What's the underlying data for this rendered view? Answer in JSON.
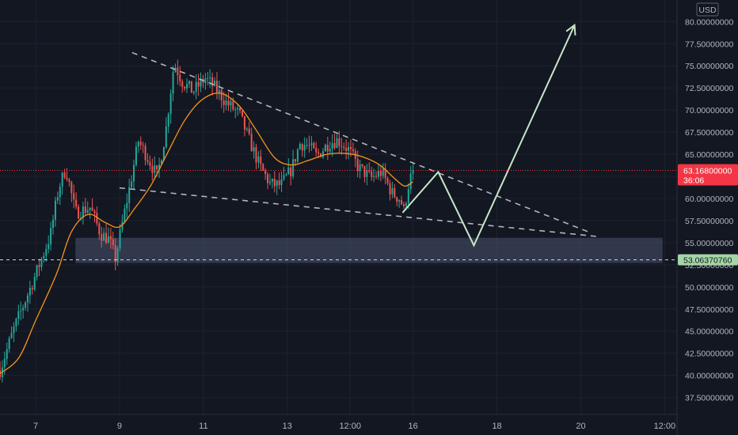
{
  "chart_data": {
    "type": "candlestick",
    "currency": "USD",
    "y_ticks": [
      "80.00000000",
      "77.50000000",
      "75.00000000",
      "72.50000000",
      "70.00000000",
      "67.50000000",
      "65.00000000",
      "62.50000000",
      "60.00000000",
      "57.50000000",
      "55.00000000",
      "52.50000000",
      "50.00000000",
      "47.50000000",
      "45.00000000",
      "42.50000000",
      "40.00000000",
      "37.50000000"
    ],
    "y_tick_values": [
      80,
      77.5,
      75,
      72.5,
      70,
      67.5,
      65,
      62.5,
      60,
      57.5,
      55,
      52.5,
      50,
      47.5,
      45,
      42.5,
      40,
      37.5
    ],
    "ylim": [
      36.3,
      81.1
    ],
    "x_ticks": [
      "7",
      "9",
      "11",
      "13",
      "12:00",
      "16",
      "18",
      "20",
      "12:00"
    ],
    "x_tick_values": [
      7,
      9,
      11,
      13,
      14.5,
      16,
      18,
      20,
      22
    ],
    "xlim": [
      6.15,
      22.2
    ],
    "last_price": {
      "label": "63.16800000",
      "value": 63.168,
      "countdown": "36:06",
      "color": "#f23645"
    },
    "level_line": {
      "label": "53.06370760",
      "value": 53.0637,
      "color": "#a5d6a7"
    },
    "support_zone": {
      "x_from": 7.95,
      "x_to": 21.95,
      "y_low": 52.7,
      "y_high": 55.55,
      "color": "#4a5470"
    },
    "wedge_upper": {
      "from": [
        9.3,
        76.5
      ],
      "to": [
        20.25,
        56.1
      ]
    },
    "wedge_lower": {
      "from": [
        9.0,
        61.2
      ],
      "to": [
        20.4,
        55.7
      ]
    },
    "projection": [
      [
        15.75,
        58.4
      ],
      [
        16.6,
        63.0
      ],
      [
        17.45,
        54.7
      ],
      [
        19.85,
        79.6
      ]
    ],
    "ma_line_color": "#f7931a",
    "candles": {
      "count": 180,
      "x_start": 6.15,
      "x_end": 16.0,
      "anchors": [
        [
          6.15,
          40.6
        ],
        [
          6.5,
          45.5
        ],
        [
          6.95,
          50.8
        ],
        [
          7.35,
          55.8
        ],
        [
          7.55,
          61.2
        ],
        [
          7.72,
          63.4
        ],
        [
          7.95,
          58.4
        ],
        [
          8.3,
          59.0
        ],
        [
          8.55,
          56.0
        ],
        [
          8.75,
          55.4
        ],
        [
          8.9,
          53.2
        ],
        [
          9.1,
          58.0
        ],
        [
          9.25,
          61.5
        ],
        [
          9.45,
          66.5
        ],
        [
          9.65,
          64.8
        ],
        [
          9.9,
          62.5
        ],
        [
          10.1,
          67.5
        ],
        [
          10.3,
          75.3
        ],
        [
          10.5,
          73.2
        ],
        [
          10.75,
          72.1
        ],
        [
          11.05,
          73.6
        ],
        [
          11.3,
          72.4
        ],
        [
          11.55,
          70.8
        ],
        [
          11.85,
          69.6
        ],
        [
          12.1,
          66.5
        ],
        [
          12.35,
          63.6
        ],
        [
          12.6,
          61.6
        ],
        [
          12.85,
          61.5
        ],
        [
          13.1,
          63.3
        ],
        [
          13.3,
          66.2
        ],
        [
          13.5,
          66.0
        ],
        [
          13.7,
          64.8
        ],
        [
          14.0,
          66.3
        ],
        [
          14.2,
          66.6
        ],
        [
          14.45,
          65.6
        ],
        [
          14.7,
          63.5
        ],
        [
          15.0,
          62.3
        ],
        [
          15.25,
          63.0
        ],
        [
          15.5,
          60.6
        ],
        [
          15.7,
          59.9
        ],
        [
          15.78,
          58.6
        ],
        [
          15.9,
          61.8
        ],
        [
          16.0,
          63.168
        ]
      ],
      "up_color": "#26a69a",
      "down_color": "#ef5350"
    },
    "ma_anchors": [
      [
        6.15,
        40.2
      ],
      [
        6.6,
        42.0
      ],
      [
        7.0,
        46.2
      ],
      [
        7.5,
        51.5
      ],
      [
        7.85,
        56.2
      ],
      [
        8.25,
        58.2
      ],
      [
        8.65,
        57.3
      ],
      [
        9.0,
        56.8
      ],
      [
        9.35,
        58.8
      ],
      [
        9.75,
        61.5
      ],
      [
        10.15,
        65.2
      ],
      [
        10.55,
        68.8
      ],
      [
        10.95,
        71.1
      ],
      [
        11.4,
        71.9
      ],
      [
        11.85,
        70.5
      ],
      [
        12.25,
        67.8
      ],
      [
        12.7,
        64.6
      ],
      [
        13.1,
        63.8
      ],
      [
        13.5,
        64.3
      ],
      [
        13.95,
        65.0
      ],
      [
        14.4,
        65.1
      ],
      [
        14.8,
        64.7
      ],
      [
        15.2,
        63.8
      ],
      [
        15.55,
        62.3
      ],
      [
        15.8,
        61.4
      ],
      [
        16.0,
        61.9
      ]
    ]
  }
}
